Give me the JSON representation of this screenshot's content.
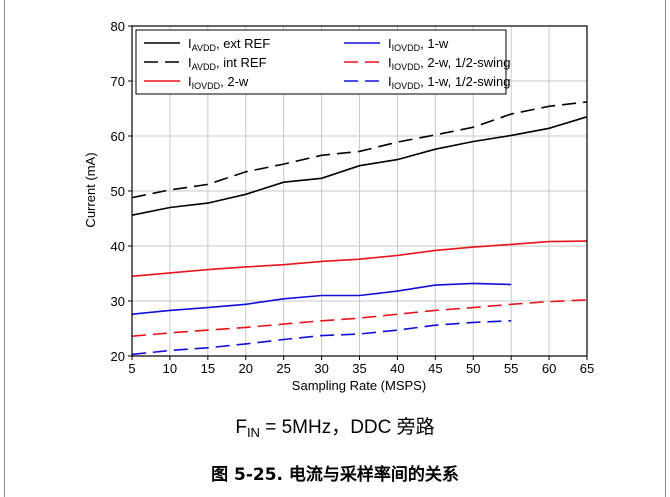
{
  "chart_data": {
    "type": "line",
    "xlabel": "Sampling Rate (MSPS)",
    "ylabel": "Current (mA)",
    "xlim": [
      5,
      65
    ],
    "ylim": [
      20,
      80
    ],
    "xticks": [
      5,
      10,
      15,
      20,
      25,
      30,
      35,
      40,
      45,
      50,
      55,
      60,
      65
    ],
    "yticks": [
      20,
      30,
      40,
      50,
      60,
      70,
      80
    ],
    "grid": true,
    "legend_position": "top-left",
    "series": [
      {
        "name": "I_AVDD, ext REF",
        "label_main": "I",
        "label_sub": "AVDD",
        "label_rest": ", ext REF",
        "color": "#000000",
        "dash": "solid",
        "x": [
          5,
          10,
          15,
          20,
          25,
          30,
          35,
          40,
          45,
          50,
          55,
          60,
          65
        ],
        "values": [
          45.6,
          47.0,
          47.8,
          49.4,
          51.6,
          52.3,
          54.6,
          55.7,
          57.6,
          59.0,
          60.1,
          61.4,
          63.5
        ]
      },
      {
        "name": "I_AVDD, int REF",
        "label_main": "I",
        "label_sub": "AVDD",
        "label_rest": ", int REF",
        "color": "#000000",
        "dash": "dashed",
        "x": [
          5,
          10,
          15,
          20,
          25,
          30,
          35,
          40,
          45,
          50,
          55,
          60,
          65
        ],
        "values": [
          48.8,
          50.2,
          51.2,
          53.5,
          54.9,
          56.5,
          57.2,
          58.9,
          60.2,
          61.6,
          64.0,
          65.4,
          66.2
        ]
      },
      {
        "name": "I_IOVDD, 2-w",
        "label_main": "I",
        "label_sub": "IOVDD",
        "label_rest": ", 2-w",
        "color": "#e8141c",
        "dash": "solid",
        "x": [
          5,
          10,
          15,
          20,
          25,
          30,
          35,
          40,
          45,
          50,
          55,
          60,
          65
        ],
        "values": [
          34.5,
          35.1,
          35.7,
          36.2,
          36.6,
          37.2,
          37.6,
          38.3,
          39.2,
          39.8,
          40.3,
          40.8,
          40.9
        ]
      },
      {
        "name": "I_IOVDD, 1-w",
        "label_main": "I",
        "label_sub": "IOVDD",
        "label_rest": ", 1-w",
        "color": "#1010d8",
        "dash": "solid",
        "x": [
          5,
          10,
          15,
          20,
          25,
          30,
          35,
          40,
          45,
          50,
          55
        ],
        "values": [
          27.6,
          28.3,
          28.8,
          29.4,
          30.4,
          31.0,
          31.0,
          31.8,
          32.9,
          33.2,
          33.0
        ]
      },
      {
        "name": "I_IOVDD, 2-w, 1/2-swing",
        "label_main": "I",
        "label_sub": "IOVDD",
        "label_rest": ", 2-w, 1/2-swing",
        "color": "#e8141c",
        "dash": "dashed",
        "x": [
          5,
          10,
          15,
          20,
          25,
          30,
          35,
          40,
          45,
          50,
          55,
          60,
          65
        ],
        "values": [
          23.6,
          24.2,
          24.7,
          25.2,
          25.8,
          26.4,
          26.9,
          27.6,
          28.3,
          28.8,
          29.4,
          29.9,
          30.2
        ]
      },
      {
        "name": "I_IOVDD, 1-w, 1/2-swing",
        "label_main": "I",
        "label_sub": "IOVDD",
        "label_rest": ", 1-w, 1/2-swing",
        "color": "#1010d8",
        "dash": "dashed",
        "x": [
          5,
          10,
          15,
          20,
          25,
          30,
          35,
          40,
          45,
          50,
          55
        ],
        "values": [
          20.3,
          21.0,
          21.5,
          22.2,
          23.0,
          23.7,
          24.0,
          24.7,
          25.6,
          26.1,
          26.4
        ]
      }
    ]
  },
  "condition": {
    "prefix": "F",
    "sub": "IN",
    "rest": " = 5MHz，DDC 旁路"
  },
  "caption": "图 5-25. 电流与采样率间的关系"
}
